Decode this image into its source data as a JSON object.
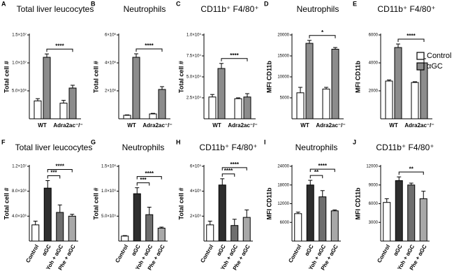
{
  "chart_data": [
    {
      "type": "bar",
      "panel": "A",
      "title": "Total liver leucocytes",
      "y_label": "Total cell #",
      "categories": [
        "WT",
        "Adra2ac⁻/⁻"
      ],
      "series": [
        {
          "color": "#ffffff",
          "values": [
            3200000,
            2800000
          ],
          "errors": [
            400000,
            500000
          ]
        },
        {
          "color": "#8c8c8c",
          "values": [
            11000000,
            5500000
          ],
          "errors": [
            600000,
            500000
          ]
        }
      ],
      "ylim": [
        0,
        15000000
      ],
      "yticks": [
        {
          "value": 5000000,
          "label": "5.0×10⁶"
        },
        {
          "value": 10000000,
          "label": "1.0×10⁷"
        },
        {
          "value": 15000000,
          "label": "1.5×10⁷"
        }
      ],
      "brackets": [
        {
          "label": "****",
          "from": [
            1,
            0
          ],
          "to": [
            1,
            1
          ]
        }
      ]
    },
    {
      "type": "bar",
      "panel": "B",
      "title": "Neutrophils",
      "y_label": "Total cell #",
      "categories": [
        "WT",
        "Adra2ac⁻/⁻"
      ],
      "series": [
        {
          "color": "#ffffff",
          "values": [
            250000,
            350000
          ],
          "errors": [
            30000,
            40000
          ]
        },
        {
          "color": "#8c8c8c",
          "values": [
            4400000,
            2100000
          ],
          "errors": [
            250000,
            200000
          ]
        }
      ],
      "ylim": [
        0,
        6000000
      ],
      "yticks": [
        {
          "value": 2000000,
          "label": "2×10⁶"
        },
        {
          "value": 4000000,
          "label": "4×10⁶"
        },
        {
          "value": 6000000,
          "label": "6×10⁶"
        }
      ],
      "brackets": [
        {
          "label": "****",
          "from": [
            1,
            0
          ],
          "to": [
            1,
            1
          ]
        }
      ]
    },
    {
      "type": "bar",
      "panel": "C",
      "title": "CD11b⁺ F4/80⁺",
      "y_label": "Total cell #",
      "categories": [
        "WT",
        "Adra2ac⁻/⁻"
      ],
      "series": [
        {
          "color": "#ffffff",
          "values": [
            26000,
            24000
          ],
          "errors": [
            3000,
            1000
          ]
        },
        {
          "color": "#8c8c8c",
          "values": [
            60000,
            26000
          ],
          "errors": [
            6000,
            4000
          ]
        }
      ],
      "ylim": [
        0,
        100000
      ],
      "yticks": [
        {
          "value": 25000,
          "label": "2.5×10⁴"
        },
        {
          "value": 50000,
          "label": "5.0×10⁴"
        },
        {
          "value": 75000,
          "label": "7.5×10⁴"
        },
        {
          "value": 100000,
          "label": "1.0×10⁵"
        }
      ],
      "brackets": [
        {
          "label": "****",
          "from": [
            1,
            0
          ],
          "to": [
            1,
            1
          ]
        }
      ]
    },
    {
      "type": "bar",
      "panel": "D",
      "title": "Neutrophils",
      "y_label": "MFI CD11b",
      "categories": [
        "WT",
        "Adra2ac⁻/⁻"
      ],
      "series": [
        {
          "color": "#ffffff",
          "values": [
            6200,
            7100
          ],
          "errors": [
            1300,
            400
          ]
        },
        {
          "color": "#8c8c8c",
          "values": [
            18000,
            16600
          ],
          "errors": [
            700,
            400
          ]
        }
      ],
      "ylim": [
        0,
        20000
      ],
      "yticks": [
        5000,
        10000,
        15000,
        20000
      ],
      "brackets": [
        {
          "label": "*",
          "from": [
            1,
            0
          ],
          "to": [
            1,
            1
          ]
        }
      ]
    },
    {
      "type": "bar",
      "panel": "E",
      "title": "CD11b⁺ F4/80⁺",
      "y_label": "MFI CD11b",
      "categories": [
        "WT",
        "Adra2ac⁻/⁻"
      ],
      "series": [
        {
          "name": "Control",
          "color": "#ffffff",
          "values": [
            2700,
            2600
          ],
          "errors": [
            80,
            50
          ]
        },
        {
          "name": "αGC",
          "color": "#8c8c8c",
          "values": [
            5100,
            4000
          ],
          "errors": [
            250,
            300
          ]
        }
      ],
      "ylim": [
        0,
        6000
      ],
      "yticks": [
        2000,
        4000,
        6000
      ],
      "brackets": [
        {
          "label": "****",
          "from": [
            1,
            0
          ],
          "to": [
            1,
            1
          ]
        }
      ]
    },
    {
      "type": "bar",
      "panel": "F",
      "title": "Total liver leucocytes",
      "y_label": "Total cell #",
      "categories": [
        "Control",
        "αGC",
        "Yoh + αGC",
        "Phe + αGC"
      ],
      "colors": [
        "#ffffff",
        "#2e2e2e",
        "#6e6e6e",
        "#a8a8a8"
      ],
      "values": [
        2600000,
        8500000,
        4600000,
        4000000
      ],
      "errors": [
        600000,
        1200000,
        1200000,
        300000
      ],
      "ylim": [
        0,
        12000000
      ],
      "yticks": [
        {
          "value": 4000000,
          "label": "4.0×10⁶"
        },
        {
          "value": 8000000,
          "label": "8.0×10⁶"
        },
        {
          "value": 12000000,
          "label": "1.2×10⁷"
        }
      ],
      "brackets": [
        {
          "label": "***",
          "from": 1,
          "to": 2
        },
        {
          "label": "****",
          "from": 1,
          "to": 3
        }
      ]
    },
    {
      "type": "bar",
      "panel": "G",
      "title": "Neutrophils",
      "y_label": "Total cell #",
      "categories": [
        "Control",
        "αGC",
        "Yoh + αGC",
        "Phe + αGC"
      ],
      "colors": [
        "#ffffff",
        "#2e2e2e",
        "#6e6e6e",
        "#a8a8a8"
      ],
      "values": [
        100000,
        950000,
        530000,
        260000
      ],
      "errors": [
        10000,
        120000,
        150000,
        20000
      ],
      "ylim": [
        0,
        1500000
      ],
      "yticks": [
        {
          "value": 500000,
          "label": "5.0×10⁵"
        },
        {
          "value": 1000000,
          "label": "1.0×10⁶"
        },
        {
          "value": 1500000,
          "label": "1.5×10⁶"
        }
      ],
      "brackets": [
        {
          "label": "***",
          "from": 1,
          "to": 2
        },
        {
          "label": "****",
          "from": 1,
          "to": 3
        }
      ]
    },
    {
      "type": "bar",
      "panel": "H",
      "title": "CD11b⁺ F4/80⁺",
      "y_label": "Total cell #",
      "categories": [
        "Control",
        "αGC",
        "Yoh + αGC",
        "Phe + αGC"
      ],
      "colors": [
        "#ffffff",
        "#2e2e2e",
        "#6e6e6e",
        "#a8a8a8"
      ],
      "values": [
        130000,
        450000,
        125000,
        190000
      ],
      "errors": [
        30000,
        50000,
        50000,
        60000
      ],
      "ylim": [
        0,
        600000
      ],
      "yticks": [
        {
          "value": 200000,
          "label": "2×10⁵"
        },
        {
          "value": 400000,
          "label": "4×10⁵"
        },
        {
          "value": 600000,
          "label": "6×10⁵"
        }
      ],
      "brackets": [
        {
          "label": "****",
          "from": 1,
          "to": 2
        },
        {
          "label": "****",
          "from": 1,
          "to": 3
        }
      ]
    },
    {
      "type": "bar",
      "panel": "I",
      "title": "Neutrophils",
      "y_label": "MFI CD11b",
      "categories": [
        "Control",
        "αGC",
        "Yoh + αGC",
        "Phe + αGC"
      ],
      "colors": [
        "#ffffff",
        "#2e2e2e",
        "#6e6e6e",
        "#a8a8a8"
      ],
      "values": [
        8800,
        18000,
        14200,
        9700
      ],
      "errors": [
        500,
        1500,
        2000,
        300
      ],
      "ylim": [
        0,
        24000
      ],
      "yticks": [
        6000,
        12000,
        18000,
        24000
      ],
      "brackets": [
        {
          "label": "**",
          "from": 1,
          "to": 2
        },
        {
          "label": "****",
          "from": 1,
          "to": 3
        }
      ]
    },
    {
      "type": "bar",
      "panel": "J",
      "title": "CD11b⁺ F4/80⁺",
      "y_label": "MFI CD11b",
      "categories": [
        "Control",
        "αGC",
        "Yoh + αGC",
        "Phe + αGC"
      ],
      "colors": [
        "#ffffff",
        "#2e2e2e",
        "#6e6e6e",
        "#a8a8a8"
      ],
      "values": [
        6200,
        9700,
        9000,
        6800
      ],
      "errors": [
        600,
        600,
        300,
        1200
      ],
      "ylim": [
        0,
        12000
      ],
      "yticks": [
        3000,
        6000,
        9000,
        12000
      ],
      "brackets": [
        {
          "label": "**",
          "from": 1,
          "to": 3
        }
      ]
    }
  ]
}
